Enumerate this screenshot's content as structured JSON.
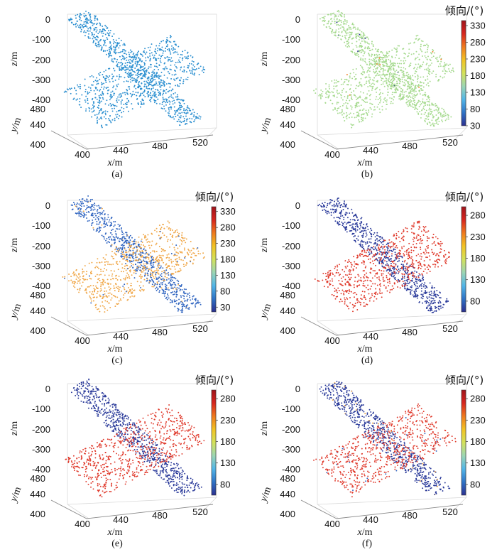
{
  "figure": {
    "colorbar_title": "倾向/(°)",
    "colormap": [
      "#2b2f8f",
      "#2f73c6",
      "#52b6e8",
      "#9cd6b4",
      "#d3e25a",
      "#f2c323",
      "#ef7a1e",
      "#d7261e",
      "#a0141c"
    ]
  },
  "chart_data": [
    {
      "panel": "a",
      "type": "scatter",
      "caption": "(a)",
      "xlabel": "x/m",
      "ylabel": "y/m",
      "zlabel": "z/m",
      "z_ticks": [
        "0",
        "-100",
        "-200",
        "-300",
        "-400"
      ],
      "y_ticks": [
        "480",
        "440",
        "400"
      ],
      "x_ticks": [
        "400",
        "440",
        "480",
        "520"
      ],
      "colorbar": null,
      "planes": [
        {
          "name": "plane-1",
          "color": "#2b8fd0"
        },
        {
          "name": "plane-2",
          "color": "#2b8fd0"
        }
      ]
    },
    {
      "panel": "b",
      "type": "scatter",
      "caption": "(b)",
      "xlabel": "x/m",
      "ylabel": "y/m",
      "zlabel": "z/m",
      "z_ticks": [
        "0",
        "-100",
        "-200",
        "-300",
        "-400"
      ],
      "y_ticks": [
        "480",
        "440",
        "400"
      ],
      "x_ticks": [
        "400",
        "440",
        "480",
        "520"
      ],
      "colorbar": {
        "min": 30,
        "max": 345,
        "ticks": [
          "330",
          "280",
          "230",
          "180",
          "130",
          "80",
          "30"
        ]
      },
      "planes": [
        {
          "name": "plane-1",
          "color": "#a6da8f"
        },
        {
          "name": "plane-2",
          "color": "#a6da8f"
        }
      ]
    },
    {
      "panel": "c",
      "type": "scatter",
      "caption": "(c)",
      "xlabel": "x/m",
      "ylabel": "y/m",
      "zlabel": "z/m",
      "z_ticks": [
        "0",
        "-100",
        "-200",
        "-300",
        "-400"
      ],
      "y_ticks": [
        "480",
        "440",
        "400"
      ],
      "x_ticks": [
        "400",
        "440",
        "480",
        "520"
      ],
      "colorbar": {
        "min": 15,
        "max": 345,
        "ticks": [
          "330",
          "280",
          "230",
          "180",
          "130",
          "80",
          "30"
        ]
      },
      "planes": [
        {
          "name": "plane-1",
          "color": "#2f64c0"
        },
        {
          "name": "plane-2",
          "color": "#f0a646"
        }
      ]
    },
    {
      "panel": "d",
      "type": "scatter",
      "caption": "(d)",
      "xlabel": "x/m",
      "ylabel": "y/m",
      "zlabel": "z/m",
      "z_ticks": [
        "0",
        "-100",
        "-200",
        "-300",
        "-400"
      ],
      "y_ticks": [
        "480",
        "440",
        "400"
      ],
      "x_ticks": [
        "400",
        "440",
        "480",
        "520"
      ],
      "colorbar": {
        "min": 55,
        "max": 300,
        "ticks": [
          "280",
          "230",
          "180",
          "130",
          "80"
        ]
      },
      "planes": [
        {
          "name": "plane-1",
          "color": "#2a3a9a"
        },
        {
          "name": "plane-2",
          "color": "#e03a2c"
        }
      ]
    },
    {
      "panel": "e",
      "type": "scatter",
      "caption": "(e)",
      "xlabel": "x/m",
      "ylabel": "y/m",
      "zlabel": "z/m",
      "z_ticks": [
        "0",
        "-100",
        "-200",
        "-300",
        "-400"
      ],
      "y_ticks": [
        "480",
        "440",
        "400"
      ],
      "x_ticks": [
        "400",
        "440",
        "480",
        "520"
      ],
      "colorbar": {
        "min": 55,
        "max": 300,
        "ticks": [
          "280",
          "230",
          "180",
          "130",
          "80"
        ]
      },
      "planes": [
        {
          "name": "plane-1",
          "color": "#2a3a9a"
        },
        {
          "name": "plane-2",
          "color": "#e03a2c"
        }
      ]
    },
    {
      "panel": "f",
      "type": "scatter",
      "caption": "(f)",
      "xlabel": "x/m",
      "ylabel": "y/m",
      "zlabel": "z/m",
      "z_ticks": [
        "0",
        "-100",
        "-200",
        "-300",
        "-400"
      ],
      "y_ticks": [
        "480",
        "440",
        "400"
      ],
      "x_ticks": [
        "400",
        "440",
        "480",
        "520"
      ],
      "colorbar": {
        "min": 55,
        "max": 300,
        "ticks": [
          "280",
          "230",
          "180",
          "130",
          "80"
        ]
      },
      "planes": [
        {
          "name": "plane-1",
          "color": "#2a3a9a"
        },
        {
          "name": "plane-2",
          "color": "#e03a2c"
        }
      ]
    }
  ]
}
